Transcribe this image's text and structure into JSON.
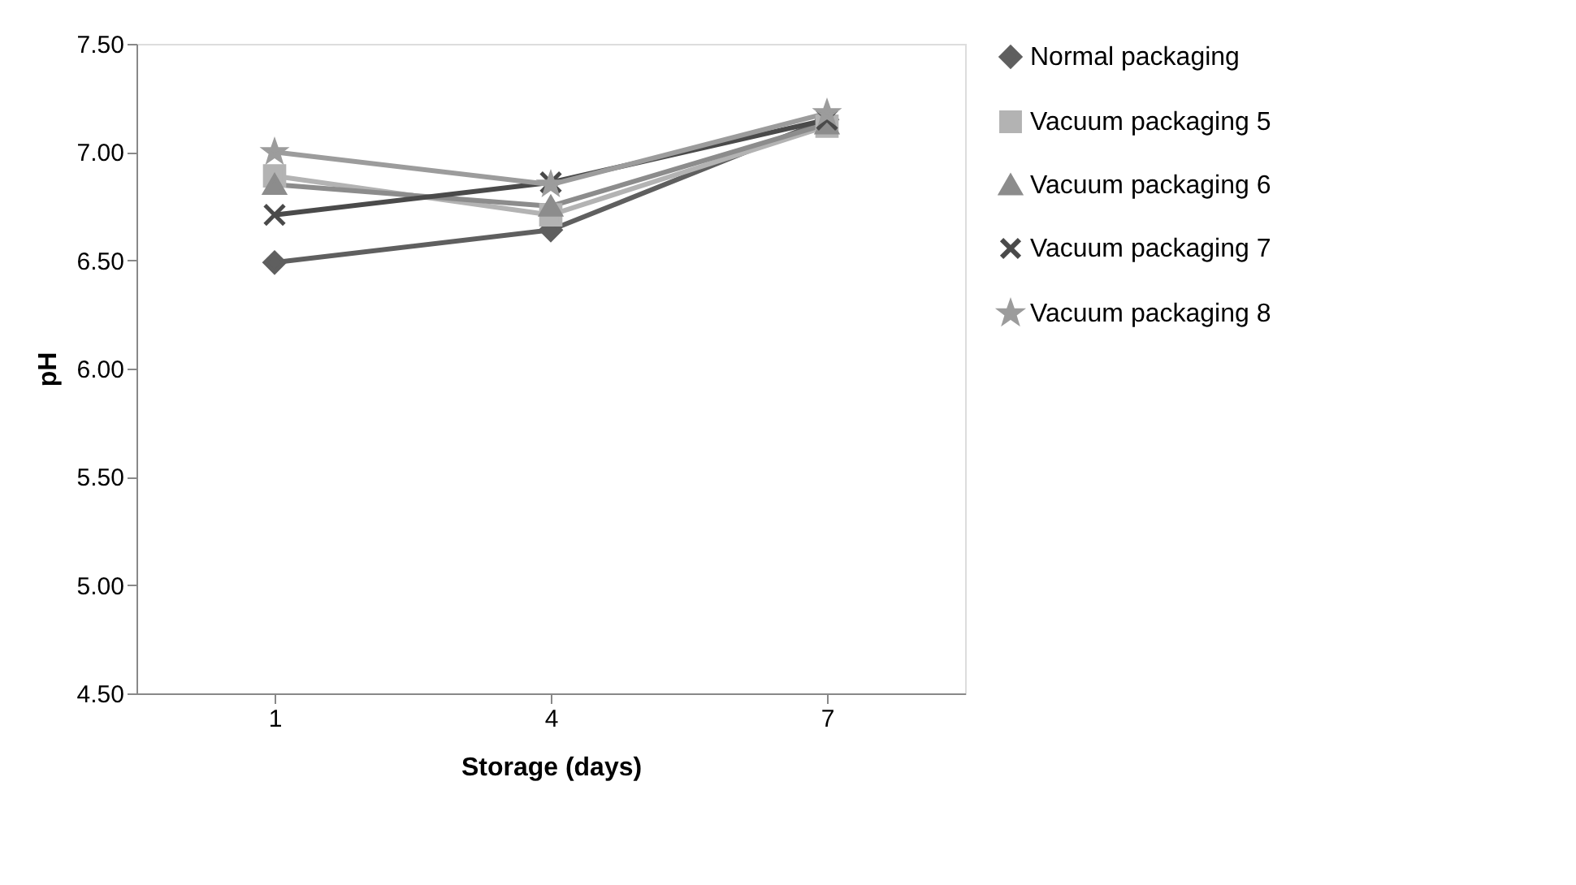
{
  "chart_data": {
    "type": "line",
    "xlabel": "Storage (days)",
    "ylabel": "pH",
    "categories": [
      "1",
      "4",
      "7"
    ],
    "series": [
      {
        "name": "Normal packaging",
        "color": "#5f5f5f",
        "marker": "diamond",
        "values": [
          6.49,
          6.64,
          7.15
        ]
      },
      {
        "name": "Vacuum packaging 5",
        "color": "#b3b3b3",
        "marker": "square",
        "values": [
          6.89,
          6.71,
          7.12
        ]
      },
      {
        "name": "Vacuum packaging 6",
        "color": "#8c8c8c",
        "marker": "triangle",
        "values": [
          6.85,
          6.75,
          7.13
        ]
      },
      {
        "name": "Vacuum packaging 7",
        "color": "#4a4a4a",
        "marker": "cross",
        "values": [
          6.71,
          6.86,
          7.15
        ]
      },
      {
        "name": "Vacuum packaging 8",
        "color": "#9c9c9c",
        "marker": "star",
        "values": [
          7.0,
          6.85,
          7.18
        ]
      }
    ],
    "ylim": [
      4.5,
      7.5
    ],
    "yticks": [
      {
        "value": 4.5,
        "label": "4.50"
      },
      {
        "value": 5.0,
        "label": "5.00"
      },
      {
        "value": 5.5,
        "label": "5.50"
      },
      {
        "value": 6.0,
        "label": "6.00"
      },
      {
        "value": 6.5,
        "label": "6.50"
      },
      {
        "value": 7.0,
        "label": "7.00"
      },
      {
        "value": 7.5,
        "label": "7.50"
      }
    ],
    "grid": false,
    "legend": "right"
  }
}
